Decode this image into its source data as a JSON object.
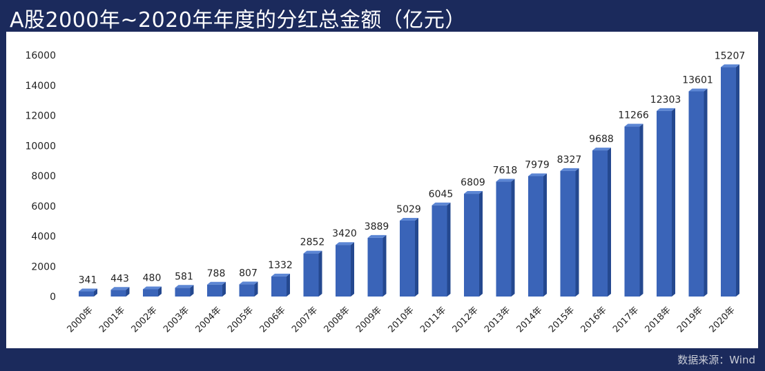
{
  "chart_data": {
    "type": "bar",
    "title": "A股2000年~2020年年度的分红总金额（亿元）",
    "xlabel": "",
    "ylabel": "",
    "ylim": [
      0,
      16000
    ],
    "yticks": [
      "0",
      "2000",
      "4000",
      "6000",
      "8000",
      "10000",
      "12000",
      "14000",
      "16000"
    ],
    "categories": [
      "2000年",
      "2001年",
      "2002年",
      "2003年",
      "2004年",
      "2005年",
      "2006年",
      "2007年",
      "2008年",
      "2009年",
      "2010年",
      "2011年",
      "2012年",
      "2013年",
      "2014年",
      "2015年",
      "2016年",
      "2017年",
      "2018年",
      "2019年",
      "2020年"
    ],
    "values": [
      341,
      443,
      480,
      581,
      788,
      807,
      1332,
      2852,
      3420,
      3889,
      5029,
      6045,
      6809,
      7618,
      7979,
      8327,
      9688,
      11266,
      12303,
      13601,
      15207
    ],
    "bar_color": "#3a64b8",
    "grid": false,
    "legend": "none"
  },
  "source": "数据来源：Wind"
}
